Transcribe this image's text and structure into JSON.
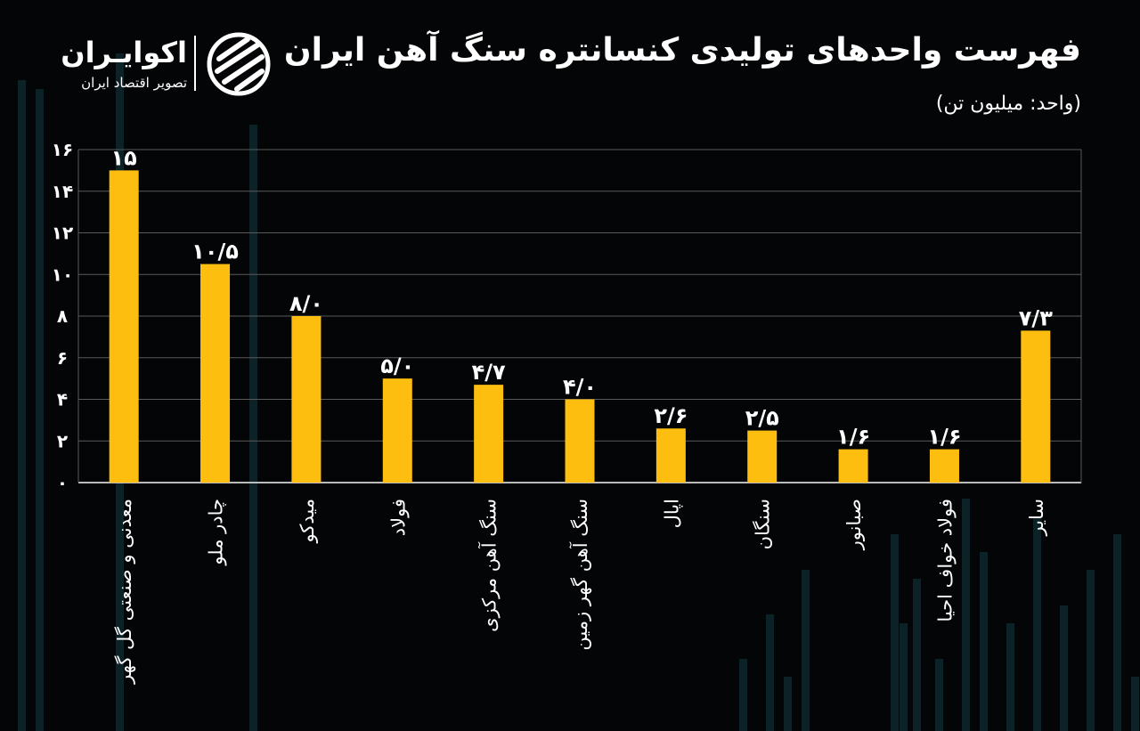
{
  "header": {
    "title": "فهرست واحدهای تولیدی کنسانتره سنگ آهن ایران",
    "subtitle": "(واحد: میلیون تن)",
    "logo_name": "اکوایـران",
    "logo_tagline": "تصویر اقتصاد ایران"
  },
  "colors": {
    "bar": "#FDBE10",
    "background": "#030506",
    "grid": "#5a5a5a",
    "text": "#ffffff",
    "decor": "#0c2226"
  },
  "chart_data": {
    "type": "bar",
    "title": "فهرست واحدهای تولیدی کنسانتره سنگ آهن ایران",
    "subtitle": "(واحد: میلیون تن)",
    "categories": [
      "معدنی و صنعتی گل گهر",
      "چادر ملو",
      "میدکو",
      "فولاد",
      "سنگ آهن مرکزی",
      "سنگ آهن گهر زمین",
      "اپال",
      "سنگان",
      "صبانور",
      "فولاد خواف احیا",
      "سایر"
    ],
    "values": [
      15,
      10.5,
      8.0,
      5.0,
      4.7,
      4.0,
      2.6,
      2.5,
      1.6,
      1.6,
      7.3
    ],
    "data_labels": [
      "۱۵",
      "۱۰/۵",
      "۸/۰",
      "۵/۰",
      "۴/۷",
      "۴/۰",
      "۲/۶",
      "۲/۵",
      "۱/۶",
      "۱/۶",
      "۷/۳"
    ],
    "yticks": [
      0,
      2,
      4,
      6,
      8,
      10,
      12,
      14,
      16
    ],
    "ytick_labels": [
      "۰",
      "۲",
      "۴",
      "۶",
      "۸",
      "۱۰",
      "۱۲",
      "۱۴",
      "۱۶"
    ],
    "ylim": [
      0,
      16
    ],
    "grid": true,
    "xlabel": "",
    "ylabel": ""
  }
}
